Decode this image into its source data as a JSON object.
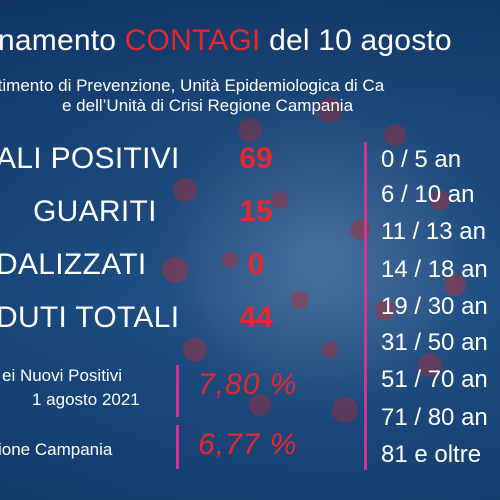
{
  "header": {
    "title_prefix": "namento ",
    "title_accent": "CONTAGI",
    "title_suffix": " del 10 agosto",
    "subtitle_line1": "rtimento di Prevenzione, Unità Epidemiologica di Ca",
    "subtitle_line2": "e dell’Unità di Crisi Regione Campania"
  },
  "stats": [
    {
      "label": "ALI POSITIVI",
      "value": "69"
    },
    {
      "label": "GUARITI",
      "value": "15"
    },
    {
      "label": "DALIZZATI",
      "value": "0"
    },
    {
      "label": "DUTI TOTALI",
      "value": "44"
    }
  ],
  "percentages": [
    {
      "label_line1": "ei Nuovi Positivi",
      "label_line2": "1 agosto 2021",
      "value": "7,80 %"
    },
    {
      "label_line1": "ione Campania",
      "value": "6,77 %"
    }
  ],
  "age_groups": [
    "0   /   5  an",
    "6  /  10  an",
    "11  /  13  an",
    "14 / 18  an",
    "19 / 30  an",
    "31 / 50  an",
    "51 / 70  an",
    "71 / 80  an",
    "81 e oltre"
  ],
  "colors": {
    "background": "#1d4f87",
    "accent_red": "#e8262b",
    "divider_magenta": "#d1348f",
    "text": "#ffffff"
  }
}
